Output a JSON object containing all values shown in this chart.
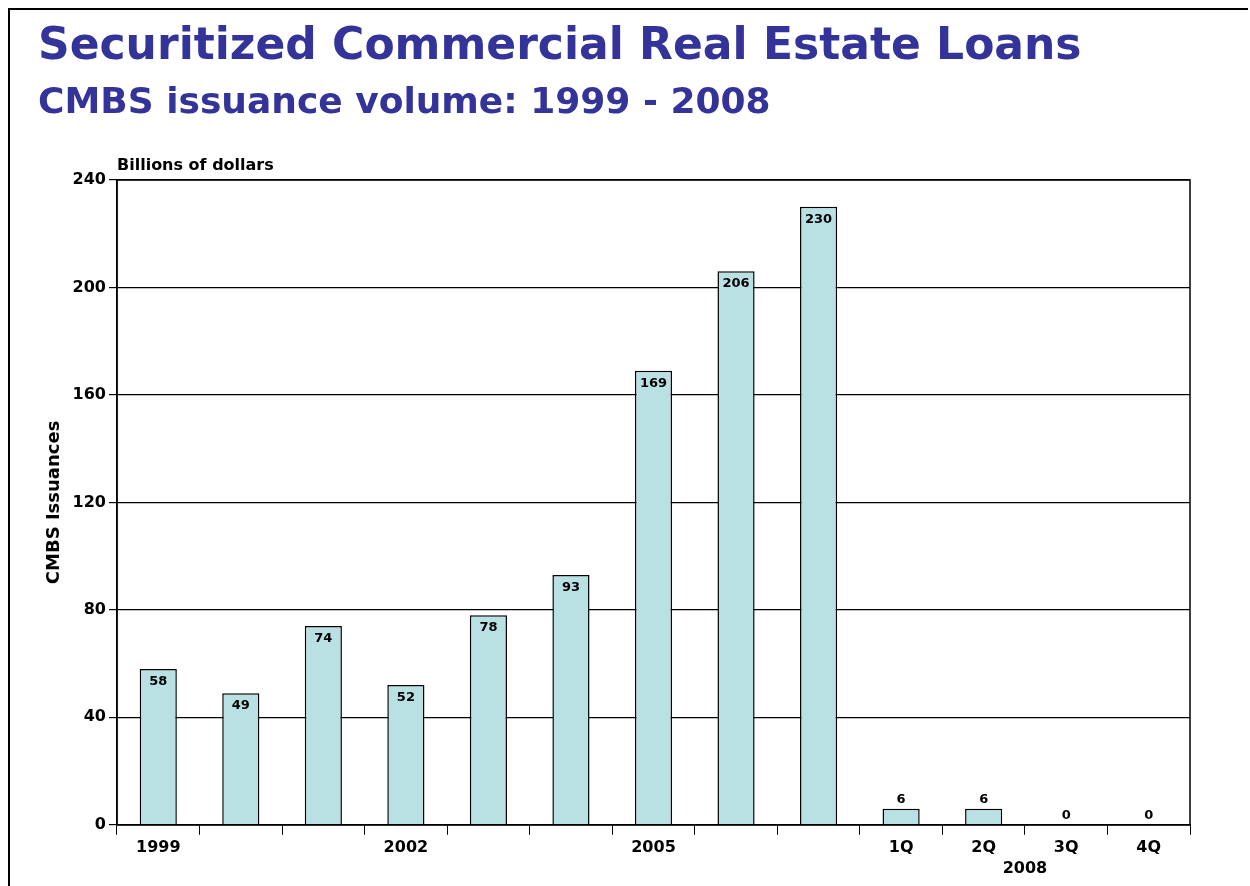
{
  "chart_data": {
    "type": "bar",
    "title": "Securitized Commercial Real Estate Loans",
    "subtitle": "CMBS issuance volume: 1999 - 2008",
    "ylabel": "CMBS Issuances",
    "annotations": [
      "Billions of dollars",
      "2008"
    ],
    "categories": [
      "1999",
      null,
      null,
      "2002",
      null,
      null,
      "2005",
      null,
      null,
      "1Q",
      "2Q",
      "3Q",
      "4Q"
    ],
    "values": [
      58,
      49,
      74,
      52,
      78,
      93,
      169,
      206,
      230,
      6,
      6,
      0,
      0
    ],
    "color": "#b9e0e3",
    "ylim": [
      0,
      240
    ],
    "yticks": [
      0,
      40,
      80,
      120,
      160,
      200,
      240
    ],
    "grid": "y",
    "data_labels": true,
    "legend": false
  }
}
